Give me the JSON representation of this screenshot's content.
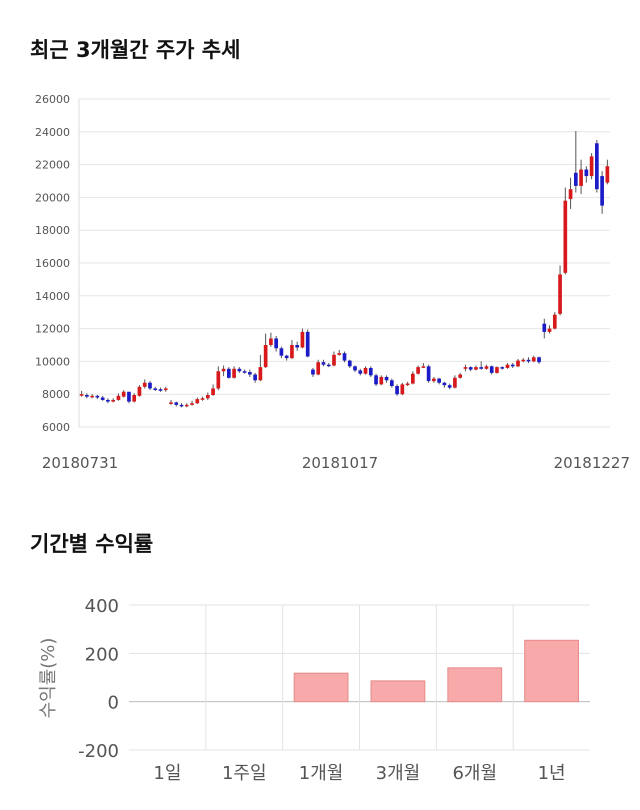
{
  "titles": {
    "price_trend": "최근 3개월간 주가 추세",
    "returns": "기간별 수익률"
  },
  "chart_data": [
    {
      "type": "candlestick",
      "title": "최근 3개월간 주가 추세",
      "ylim": [
        6000,
        26000
      ],
      "y_ticks": [
        6000,
        8000,
        10000,
        12000,
        14000,
        16000,
        18000,
        20000,
        22000,
        24000,
        26000
      ],
      "x_tick_labels": [
        "20180731",
        "20181017",
        "20181227"
      ],
      "grid": true,
      "colors": {
        "up": "#d7191c",
        "down": "#1b1bc7",
        "wick": "#555555"
      },
      "candles": [
        [
          8000,
          8000,
          8200,
          7850
        ],
        [
          7950,
          7850,
          8050,
          7750
        ],
        [
          7850,
          7900,
          8000,
          7750
        ],
        [
          7900,
          7800,
          7950,
          7700
        ],
        [
          7800,
          7650,
          7900,
          7600
        ],
        [
          7650,
          7550,
          7750,
          7450
        ],
        [
          7550,
          7650,
          7750,
          7500
        ],
        [
          7650,
          7900,
          8050,
          7600
        ],
        [
          7850,
          8150,
          8250,
          7800
        ],
        [
          8150,
          7550,
          7650,
          7450
        ],
        [
          7550,
          7950,
          8050,
          7500
        ],
        [
          7900,
          8450,
          8550,
          7850
        ],
        [
          8450,
          8700,
          8900,
          8350
        ],
        [
          8700,
          8350,
          8800,
          8250
        ],
        [
          8350,
          8300,
          8450,
          8200
        ],
        [
          8300,
          8250,
          8400,
          8150
        ],
        [
          8250,
          8350,
          8450,
          8150
        ],
        [
          7500,
          7500,
          7650,
          7350
        ],
        [
          7500,
          7350,
          7550,
          7250
        ],
        [
          7350,
          7300,
          7450,
          7200
        ],
        [
          7300,
          7350,
          7450,
          7200
        ],
        [
          7350,
          7450,
          7600,
          7300
        ],
        [
          7450,
          7700,
          7800,
          7400
        ],
        [
          7700,
          7750,
          7850,
          7600
        ],
        [
          7750,
          7950,
          8100,
          7650
        ],
        [
          7950,
          8350,
          8600,
          7900
        ],
        [
          8350,
          9400,
          9700,
          8250
        ],
        [
          9400,
          9550,
          9750,
          9100
        ],
        [
          9550,
          9000,
          9650,
          8950
        ],
        [
          9000,
          9550,
          9700,
          8950
        ],
        [
          9550,
          9400,
          9650,
          9300
        ],
        [
          9400,
          9350,
          9500,
          9250
        ],
        [
          9350,
          9200,
          9500,
          9050
        ],
        [
          9200,
          8850,
          9300,
          8700
        ],
        [
          8850,
          9650,
          10400,
          8800
        ],
        [
          9650,
          11000,
          11700,
          9600
        ],
        [
          11000,
          11400,
          11750,
          10900
        ],
        [
          11400,
          10800,
          11550,
          10600
        ],
        [
          10800,
          10350,
          10900,
          10200
        ],
        [
          10350,
          10200,
          10400,
          10050
        ],
        [
          10200,
          11000,
          11300,
          10150
        ],
        [
          11000,
          10850,
          11200,
          10650
        ],
        [
          10850,
          11800,
          12000,
          10800
        ],
        [
          11800,
          10300,
          11950,
          10250
        ],
        [
          9500,
          9200,
          9600,
          9050
        ],
        [
          9200,
          9950,
          10100,
          9150
        ],
        [
          9950,
          9800,
          10100,
          9700
        ],
        [
          9800,
          9750,
          9900,
          9650
        ],
        [
          9750,
          10400,
          10600,
          9700
        ],
        [
          10400,
          10500,
          10700,
          10350
        ],
        [
          10500,
          10050,
          10600,
          9950
        ],
        [
          10050,
          9700,
          10100,
          9600
        ],
        [
          9700,
          9450,
          9750,
          9350
        ],
        [
          9450,
          9250,
          9550,
          9150
        ],
        [
          9250,
          9600,
          9700,
          9200
        ],
        [
          9600,
          9150,
          9700,
          9050
        ],
        [
          9150,
          8600,
          9250,
          8500
        ],
        [
          8600,
          9050,
          9150,
          8550
        ],
        [
          9050,
          8850,
          9150,
          8700
        ],
        [
          8850,
          8500,
          8950,
          8400
        ],
        [
          8500,
          8000,
          8600,
          7900
        ],
        [
          8000,
          8600,
          8700,
          7950
        ],
        [
          8600,
          8650,
          8750,
          8500
        ],
        [
          8650,
          9250,
          9400,
          8600
        ],
        [
          9250,
          9650,
          9750,
          9200
        ],
        [
          9650,
          9700,
          9900,
          9600
        ],
        [
          9700,
          8800,
          9800,
          8700
        ],
        [
          8800,
          8950,
          9050,
          8700
        ],
        [
          8950,
          8700,
          9000,
          8600
        ],
        [
          8700,
          8550,
          8750,
          8400
        ],
        [
          8550,
          8400,
          8650,
          8300
        ],
        [
          8400,
          9000,
          9150,
          8350
        ],
        [
          9000,
          9200,
          9300,
          8950
        ],
        [
          9550,
          9650,
          9800,
          9400
        ],
        [
          9650,
          9500,
          9700,
          9400
        ],
        [
          9500,
          9650,
          9750,
          9450
        ],
        [
          9650,
          9550,
          10000,
          9500
        ],
        [
          9550,
          9700,
          9800,
          9500
        ],
        [
          9700,
          9300,
          9750,
          9200
        ],
        [
          9300,
          9650,
          9700,
          9250
        ],
        [
          9650,
          9600,
          9700,
          9500
        ],
        [
          9600,
          9800,
          9900,
          9550
        ],
        [
          9800,
          9700,
          9900,
          9600
        ],
        [
          9700,
          10050,
          10150,
          9650
        ],
        [
          10050,
          10100,
          10200,
          9950
        ],
        [
          10100,
          10000,
          10250,
          9900
        ],
        [
          10000,
          10250,
          10350,
          9950
        ],
        [
          10250,
          9950,
          10300,
          9850
        ],
        [
          12300,
          11800,
          12600,
          11400
        ],
        [
          11800,
          12000,
          12200,
          11700
        ],
        [
          12000,
          12850,
          13000,
          11950
        ],
        [
          12900,
          15300,
          15850,
          12800
        ],
        [
          15400,
          19800,
          20600,
          15300
        ],
        [
          19900,
          20500,
          21200,
          19300
        ],
        [
          21500,
          20700,
          24050,
          20300
        ],
        [
          20700,
          21700,
          22300,
          20200
        ],
        [
          21700,
          21300,
          21900,
          20900
        ],
        [
          21300,
          22500,
          22700,
          21100
        ],
        [
          23300,
          20500,
          23500,
          20300
        ],
        [
          21300,
          19500,
          21600,
          19000
        ],
        [
          20900,
          21900,
          22300,
          20800
        ]
      ]
    },
    {
      "type": "bar",
      "title": "기간별 수익률",
      "ylabel": "수익률(%)",
      "categories": [
        "1일",
        "1주일",
        "1개월",
        "3개월",
        "6개월",
        "1년"
      ],
      "values": [
        0,
        0,
        118,
        86,
        140,
        254
      ],
      "ylim": [
        -200,
        400
      ],
      "y_ticks": [
        -200,
        0,
        200,
        400
      ],
      "grid": true,
      "bar_color": "#f8a9a9"
    }
  ]
}
